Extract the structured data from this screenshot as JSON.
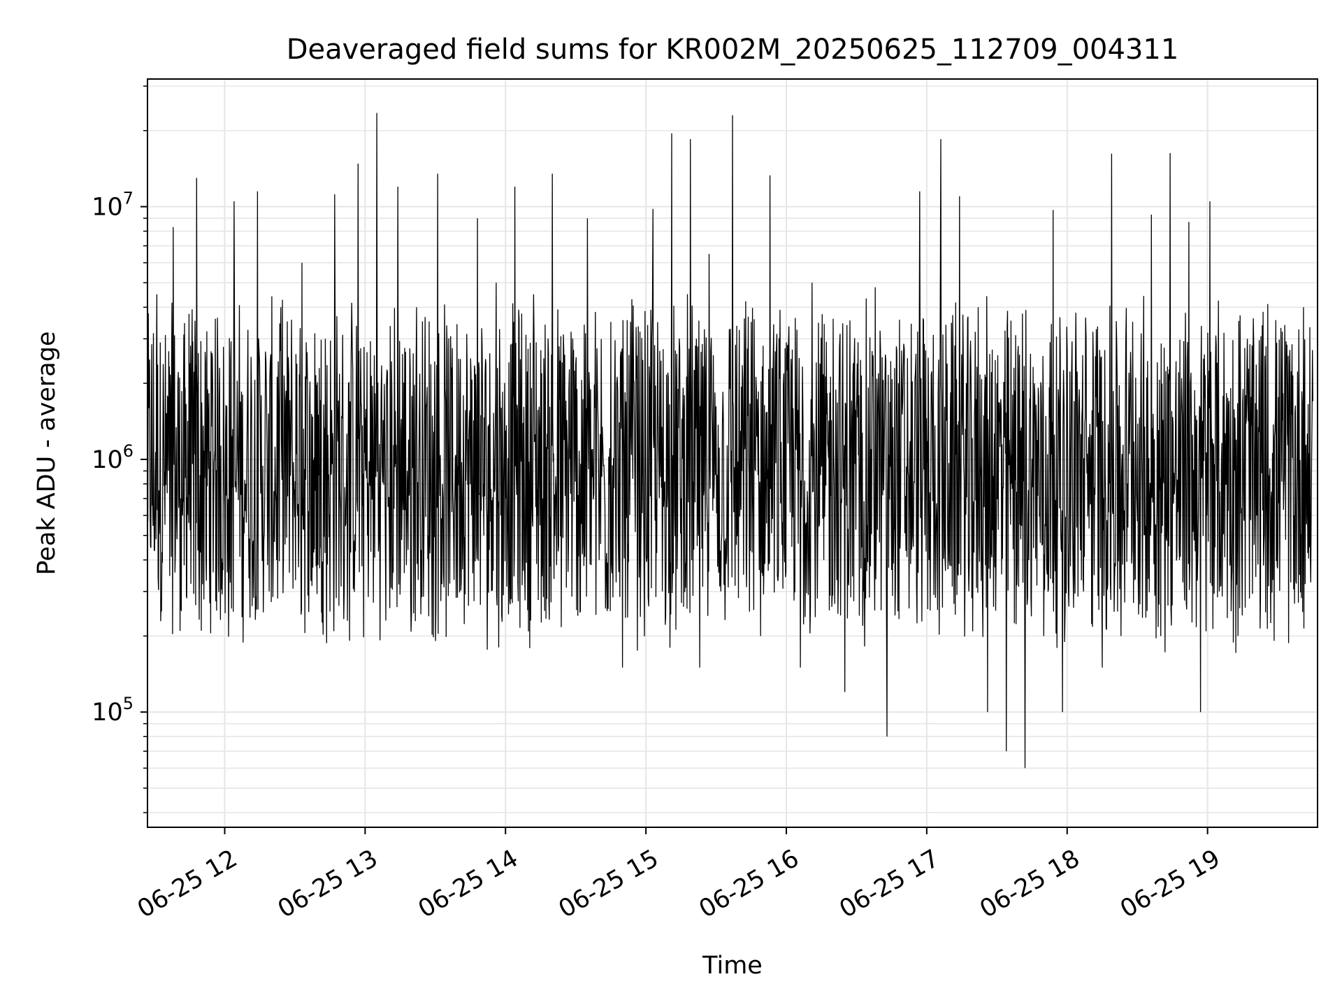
{
  "chart_data": {
    "type": "line",
    "title": "Deaveraged field sums for KR002M_20250625_112709_004311",
    "xlabel": "Time",
    "ylabel": "Peak ADU - average",
    "yscale": "log",
    "xlim": [
      "06-25 11:27",
      "06-25 19:47"
    ],
    "ylim": [
      35000,
      32000000
    ],
    "xticks": [
      {
        "label": "06-25 12",
        "hour": 12
      },
      {
        "label": "06-25 13",
        "hour": 13
      },
      {
        "label": "06-25 14",
        "hour": 14
      },
      {
        "label": "06-25 15",
        "hour": 15
      },
      {
        "label": "06-25 16",
        "hour": 16
      },
      {
        "label": "06-25 17",
        "hour": 17
      },
      {
        "label": "06-25 18",
        "hour": 18
      },
      {
        "label": "06-25 19",
        "hour": 19
      }
    ],
    "yticks": [
      {
        "base": "10",
        "exp": "5",
        "value": 100000
      },
      {
        "base": "10",
        "exp": "6",
        "value": 1000000
      },
      {
        "base": "10",
        "exp": "7",
        "value": 10000000
      }
    ],
    "grid": true,
    "series": [
      {
        "color": "#000000",
        "x": [
          "11:27",
          "11:31",
          "11:35",
          "11:38",
          "11:42",
          "11:45",
          "11:48",
          "11:52",
          "11:56",
          "12:00",
          "12:04",
          "12:09",
          "12:14",
          "12:19",
          "12:24",
          "12:29",
          "12:33",
          "12:37",
          "12:40",
          "12:43",
          "12:47",
          "12:52",
          "12:57",
          "13:01",
          "13:05",
          "13:10",
          "13:14",
          "13:18",
          "13:22",
          "13:27",
          "13:31",
          "13:36",
          "13:40",
          "13:44",
          "13:48",
          "13:52",
          "13:56",
          "14:00",
          "14:04",
          "14:08",
          "14:12",
          "14:16",
          "14:20",
          "14:24",
          "14:28",
          "14:32",
          "14:35",
          "14:40",
          "14:45",
          "14:50",
          "14:54",
          "14:58",
          "15:03",
          "15:07",
          "15:11",
          "15:15",
          "15:19",
          "15:23",
          "15:27",
          "15:32",
          "15:37",
          "15:41",
          "15:45",
          "15:49",
          "15:53",
          "15:58",
          "16:02",
          "16:06",
          "16:11",
          "16:16",
          "16:20",
          "16:25",
          "16:29",
          "16:33",
          "16:38",
          "16:43",
          "16:47",
          "16:52",
          "16:57",
          "17:01",
          "17:06",
          "17:10",
          "17:14",
          "17:18",
          "17:22",
          "17:26",
          "17:30",
          "17:34",
          "17:38",
          "17:42",
          "17:46",
          "17:50",
          "17:54",
          "17:58",
          "18:03",
          "18:07",
          "18:11",
          "18:15",
          "18:19",
          "18:23",
          "18:28",
          "18:32",
          "18:36",
          "18:40",
          "18:44",
          "18:48",
          "18:52",
          "18:57",
          "19:01",
          "19:05",
          "19:09",
          "19:13",
          "19:17",
          "19:21",
          "19:25",
          "19:29",
          "19:33",
          "19:37",
          "19:41",
          "19:45"
        ],
        "values": [
          900000,
          4500000,
          1200000,
          8300000,
          600000,
          2400000,
          13000000,
          400000,
          3600000,
          650000,
          10500000,
          800000,
          11500000,
          300000,
          4000000,
          700000,
          6000000,
          350000,
          1500000,
          3000000,
          11200000,
          800000,
          14800000,
          500000,
          23500000,
          700000,
          12000000,
          900000,
          4000000,
          500000,
          13500000,
          800000,
          2500000,
          1200000,
          9000000,
          600000,
          5000000,
          1300000,
          12000000,
          900000,
          4500000,
          700000,
          13500000,
          600000,
          3200000,
          250000,
          9000000,
          400000,
          3500000,
          150000,
          4300000,
          600000,
          9800000,
          300000,
          19500000,
          700000,
          18500000,
          150000,
          6500000,
          300000,
          23000000,
          900000,
          3500000,
          200000,
          13300000,
          600000,
          2500000,
          150000,
          5000000,
          400000,
          3600000,
          120000,
          2500000,
          300000,
          4800000,
          80000,
          2800000,
          900000,
          11500000,
          400000,
          18500000,
          1200000,
          11000000,
          300000,
          4000000,
          100000,
          2000000,
          70000,
          3100000,
          60000,
          2000000,
          200000,
          9700000,
          100000,
          1700000,
          300000,
          3200000,
          150000,
          16200000,
          200000,
          3500000,
          800000,
          9300000,
          200000,
          16300000,
          400000,
          8700000,
          100000,
          10500000,
          300000,
          1600000,
          200000,
          3000000,
          600000,
          2800000,
          1500000,
          3400000,
          600000,
          4000000,
          1700000
        ]
      }
    ]
  }
}
